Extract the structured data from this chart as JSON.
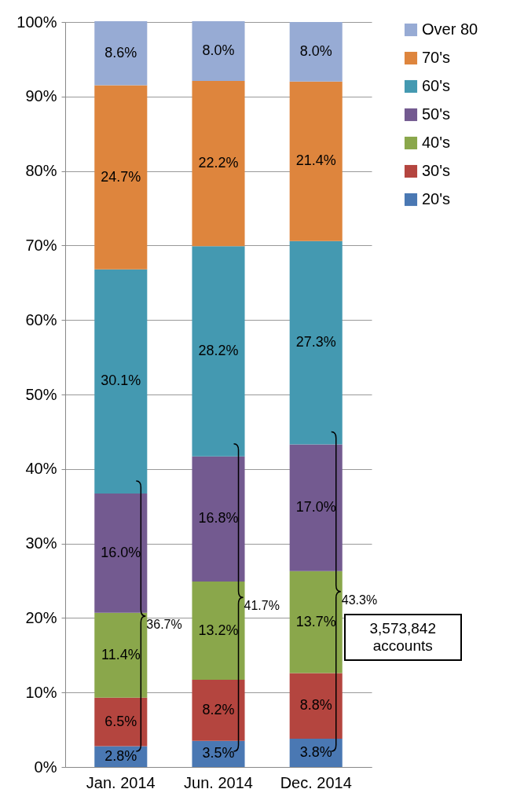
{
  "chart_data": {
    "type": "bar",
    "stacked": true,
    "categories": [
      "Jan. 2014",
      "Jun. 2014",
      "Dec. 2014"
    ],
    "series": [
      {
        "name": "20's",
        "color": "#4a78b3",
        "values": [
          2.8,
          3.5,
          3.8
        ],
        "value_labels": [
          "2.8%",
          "3.5%",
          "3.8%"
        ]
      },
      {
        "name": "30's",
        "color": "#b4453f",
        "values": [
          6.5,
          8.2,
          8.8
        ],
        "value_labels": [
          "6.5%",
          "8.2%",
          "8.8%"
        ]
      },
      {
        "name": "40's",
        "color": "#8aa74b",
        "values": [
          11.4,
          13.2,
          13.7
        ],
        "value_labels": [
          "11.4%",
          "13.2%",
          "13.7%"
        ]
      },
      {
        "name": "50's",
        "color": "#735a90",
        "values": [
          16.0,
          16.8,
          17.0
        ],
        "value_labels": [
          "16.0%",
          "16.8%",
          "17.0%"
        ]
      },
      {
        "name": "60's",
        "color": "#4499b1",
        "values": [
          30.1,
          28.2,
          27.3
        ],
        "value_labels": [
          "30.1%",
          "28.2%",
          "27.3%"
        ]
      },
      {
        "name": "70's",
        "color": "#de853d",
        "values": [
          24.7,
          22.2,
          21.4
        ],
        "value_labels": [
          "24.7%",
          "22.2%",
          "21.4%"
        ]
      },
      {
        "name": "Over 80",
        "color": "#97abd4",
        "values": [
          8.6,
          8.0,
          8.0
        ],
        "value_labels": [
          "8.6%",
          "8.0%",
          "8.0%"
        ]
      }
    ],
    "ylim": [
      0,
      100
    ],
    "yticks": [
      {
        "value": 0,
        "label": "0%"
      },
      {
        "value": 10,
        "label": "10%"
      },
      {
        "value": 20,
        "label": "20%"
      },
      {
        "value": 30,
        "label": "30%"
      },
      {
        "value": 40,
        "label": "40%"
      },
      {
        "value": 50,
        "label": "50%"
      },
      {
        "value": 60,
        "label": "60%"
      },
      {
        "value": 70,
        "label": "70%"
      },
      {
        "value": 80,
        "label": "80%"
      },
      {
        "value": 90,
        "label": "90%"
      },
      {
        "value": 100,
        "label": "100%"
      }
    ],
    "grid": "y",
    "legend": "right",
    "annotations": [
      "36.7%",
      "41.7%",
      "43.3%",
      "3,573,842 accounts"
    ]
  }
}
